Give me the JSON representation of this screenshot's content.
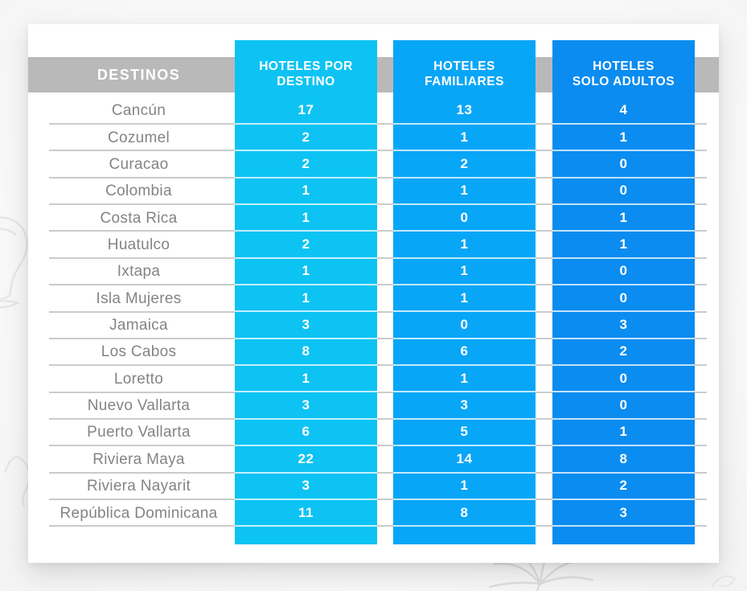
{
  "table": {
    "header": {
      "destinations_label": "DESTINOS",
      "columns": [
        {
          "key": "por_destino",
          "label": "HOTELES POR DESTINO",
          "lines": [
            "HOTELES POR",
            "DESTINO"
          ],
          "color": "#0dc3f3"
        },
        {
          "key": "familiares",
          "label": "HOTELES FAMILIARES",
          "lines": [
            "HOTELES",
            "FAMILIARES"
          ],
          "color": "#08a6f7"
        },
        {
          "key": "solo_adultos",
          "label": "HOTELES SOLO ADULTOS",
          "lines": [
            "HOTELES",
            "SOLO ADULTOS"
          ],
          "color": "#0a8cf0"
        }
      ]
    },
    "rows": [
      {
        "destination": "Cancún",
        "por_destino": "17",
        "familiares": "13",
        "solo_adultos": "4"
      },
      {
        "destination": "Cozumel",
        "por_destino": "2",
        "familiares": "1",
        "solo_adultos": "1"
      },
      {
        "destination": "Curacao",
        "por_destino": "2",
        "familiares": "2",
        "solo_adultos": "0"
      },
      {
        "destination": "Colombia",
        "por_destino": "1",
        "familiares": "1",
        "solo_adultos": "0"
      },
      {
        "destination": "Costa Rica",
        "por_destino": "1",
        "familiares": "0",
        "solo_adultos": "1"
      },
      {
        "destination": "Huatulco",
        "por_destino": "2",
        "familiares": "1",
        "solo_adultos": "1"
      },
      {
        "destination": "Ixtapa",
        "por_destino": "1",
        "familiares": "1",
        "solo_adultos": "0"
      },
      {
        "destination": "Isla Mujeres",
        "por_destino": "1",
        "familiares": "1",
        "solo_adultos": "0"
      },
      {
        "destination": "Jamaica",
        "por_destino": "3",
        "familiares": "0",
        "solo_adultos": "3"
      },
      {
        "destination": "Los Cabos",
        "por_destino": "8",
        "familiares": "6",
        "solo_adultos": "2"
      },
      {
        "destination": "Loretto",
        "por_destino": "1",
        "familiares": "1",
        "solo_adultos": "0"
      },
      {
        "destination": "Nuevo Vallarta",
        "por_destino": "3",
        "familiares": "3",
        "solo_adultos": "0"
      },
      {
        "destination": "Puerto Vallarta",
        "por_destino": "6",
        "familiares": "5",
        "solo_adultos": "1"
      },
      {
        "destination": "Riviera Maya",
        "por_destino": "22",
        "familiares": "14",
        "solo_adultos": "8"
      },
      {
        "destination": "Riviera Nayarit",
        "por_destino": "3",
        "familiares": "1",
        "solo_adultos": "2"
      },
      {
        "destination": "República Dominicana",
        "por_destino": "11",
        "familiares": "8",
        "solo_adultos": "3"
      }
    ]
  },
  "colors": {
    "column_cyan": "#0dc3f3",
    "column_azure": "#08a6f7",
    "column_blue": "#0a8cf0",
    "header_gray": "#b9b9b9",
    "row_text_gray": "#848484",
    "separator_gray": "#cbcbcb"
  },
  "decorations": [
    "cocktail-glass",
    "wave",
    "palm-tree",
    "chevron-left",
    "swirl"
  ],
  "chart_data": {
    "type": "table",
    "columns": [
      "DESTINOS",
      "HOTELES POR DESTINO",
      "HOTELES FAMILIARES",
      "HOTELES SOLO ADULTOS"
    ],
    "rows": [
      [
        "Cancún",
        17,
        13,
        4
      ],
      [
        "Cozumel",
        2,
        1,
        1
      ],
      [
        "Curacao",
        2,
        2,
        0
      ],
      [
        "Colombia",
        1,
        1,
        0
      ],
      [
        "Costa Rica",
        1,
        0,
        1
      ],
      [
        "Huatulco",
        2,
        1,
        1
      ],
      [
        "Ixtapa",
        1,
        1,
        0
      ],
      [
        "Isla Mujeres",
        1,
        1,
        0
      ],
      [
        "Jamaica",
        3,
        0,
        3
      ],
      [
        "Los Cabos",
        8,
        6,
        2
      ],
      [
        "Loretto",
        1,
        1,
        0
      ],
      [
        "Nuevo Vallarta",
        3,
        3,
        0
      ],
      [
        "Puerto Vallarta",
        6,
        5,
        1
      ],
      [
        "Riviera Maya",
        22,
        14,
        8
      ],
      [
        "Riviera Nayarit",
        3,
        1,
        2
      ],
      [
        "República Dominicana",
        11,
        8,
        3
      ]
    ]
  }
}
